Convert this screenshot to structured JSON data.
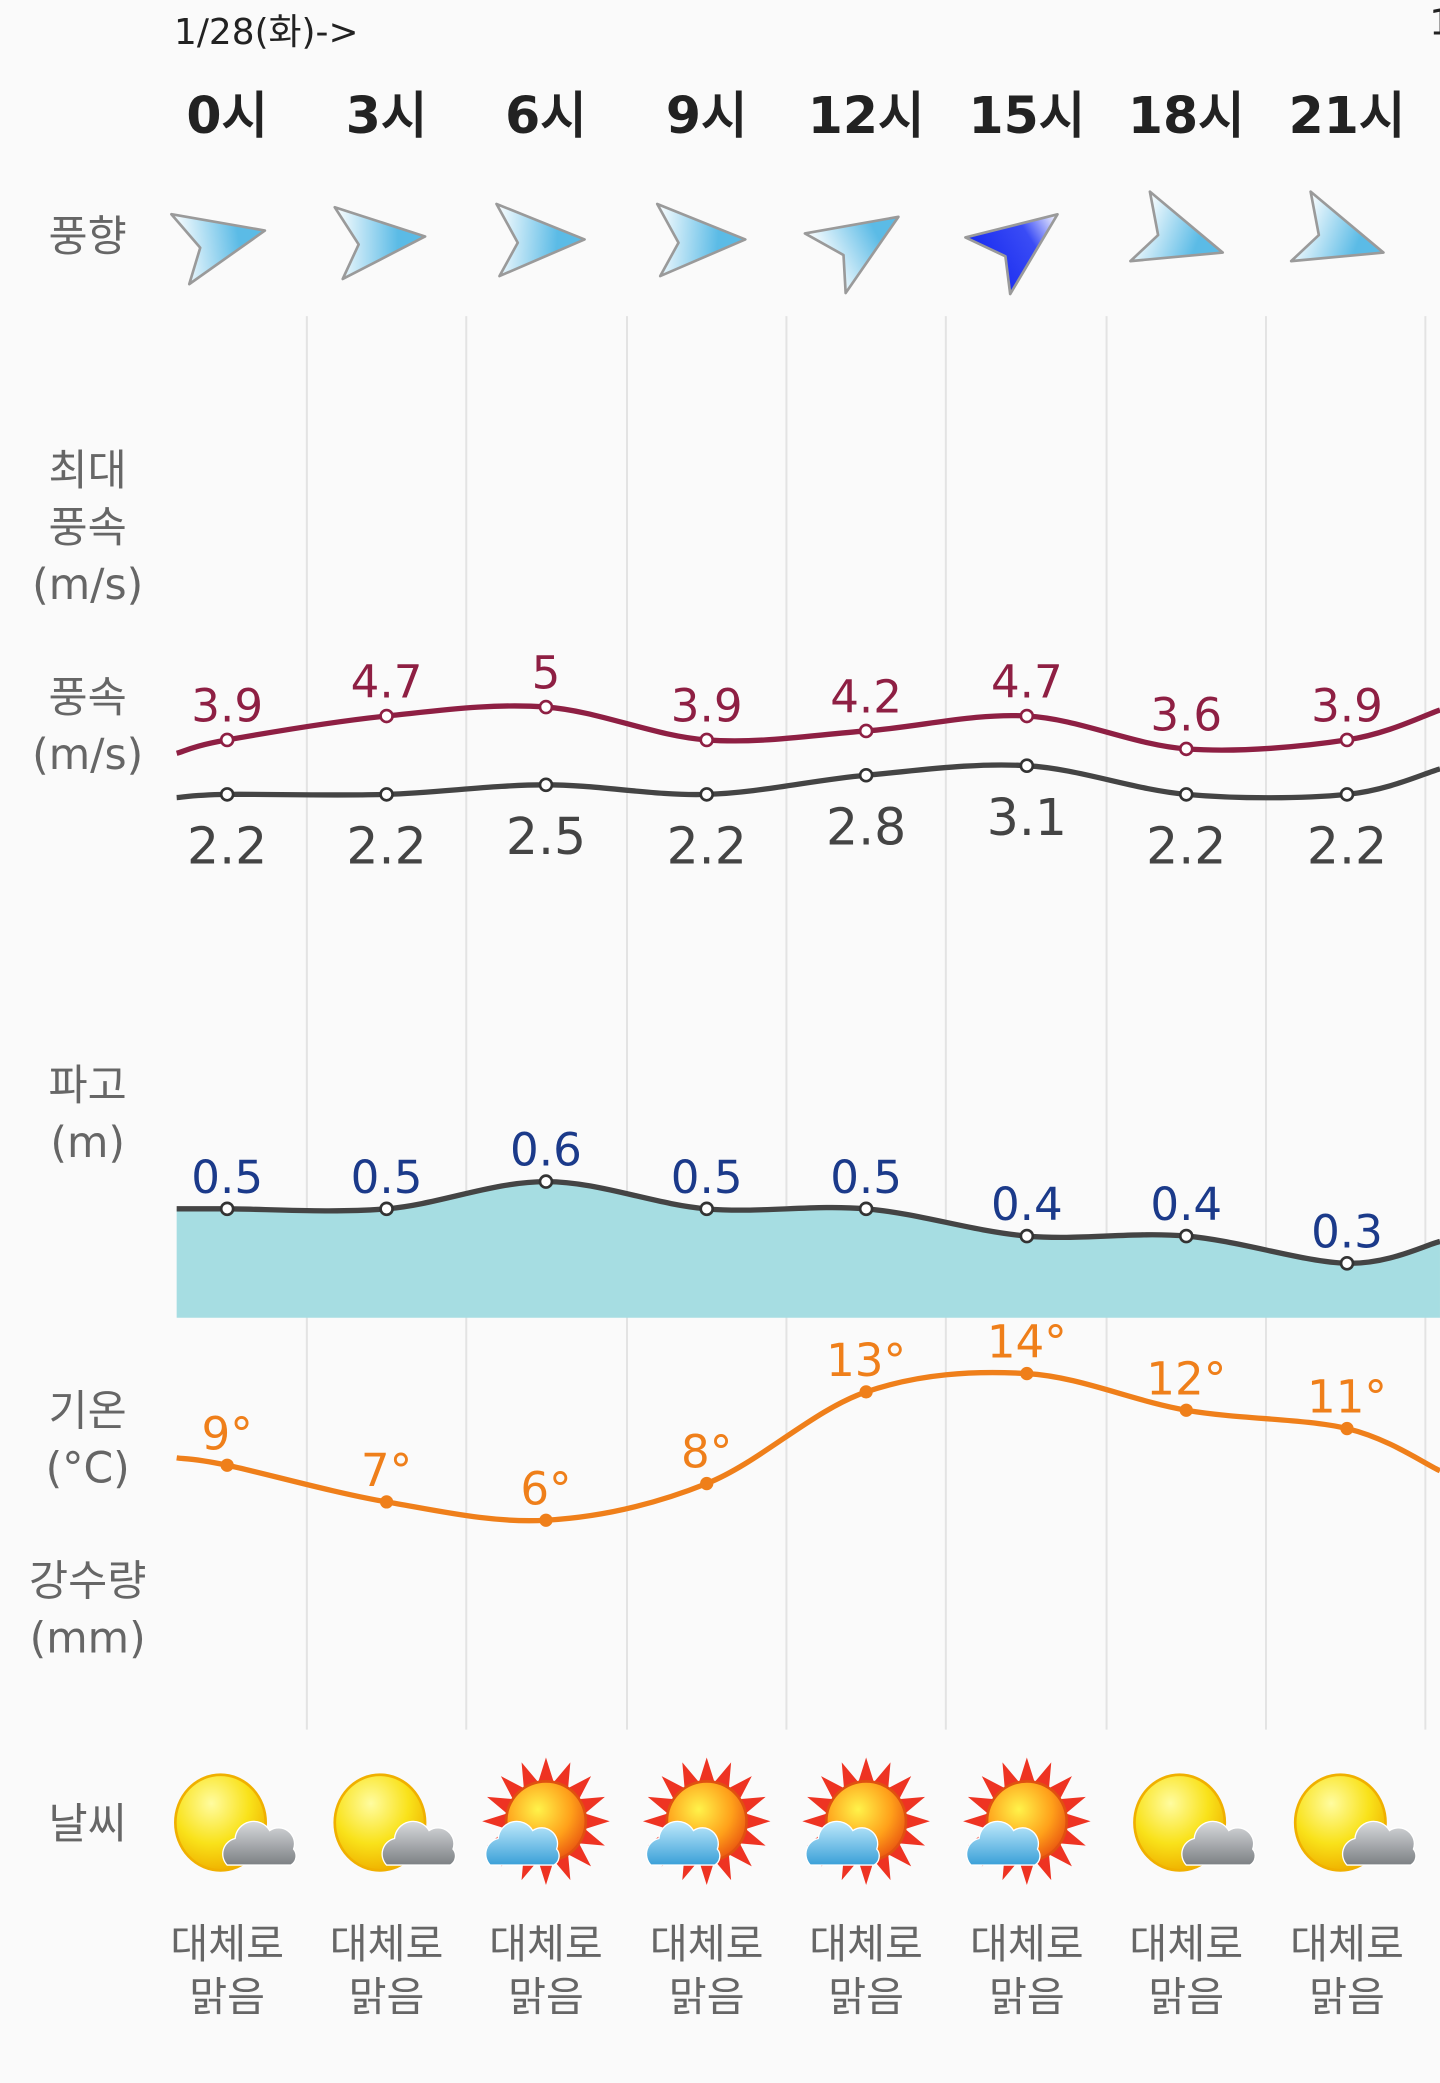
{
  "header": {
    "date_label": "1/28(화)->",
    "next_date_label": "1"
  },
  "hours": [
    "0시",
    "3시",
    "6시",
    "9시",
    "12시",
    "15시",
    "18시",
    "21시"
  ],
  "row_labels": {
    "wind_direction": "풍향",
    "max_wind": [
      "최대",
      "풍속",
      "(m/s)"
    ],
    "wind_speed": [
      "풍속",
      "(m/s)"
    ],
    "wave": [
      "파고",
      "(m)"
    ],
    "temperature": [
      "기온",
      "(°C)"
    ],
    "precipitation": [
      "강수량",
      "(mm)"
    ],
    "weather": "날씨"
  },
  "colors": {
    "max_wind": "#8e1f43",
    "wind_speed": "#444444",
    "wave_line": "#444444",
    "wave_fill": "#a6dde2",
    "wave_label": "#1b3a8a",
    "temperature": "#ef7f1a",
    "wind_arrow": "#5bbbe6",
    "wind_arrow_strong": "#1a2cf0"
  },
  "chart_data": {
    "type": "line",
    "categories": [
      "0시",
      "3시",
      "6시",
      "9시",
      "12시",
      "15시",
      "18시",
      "21시"
    ],
    "series": [
      {
        "key": "max_wind",
        "values": [
          3.9,
          4.7,
          5,
          3.9,
          4.2,
          4.7,
          3.6,
          3.9
        ],
        "labels": [
          "3.9",
          "4.7",
          "5",
          "3.9",
          "4.2",
          "4.7",
          "3.6",
          "3.9"
        ]
      },
      {
        "key": "wind_speed",
        "values": [
          2.2,
          2.2,
          2.5,
          2.2,
          2.8,
          3.1,
          2.2,
          2.2
        ],
        "labels": [
          "2.2",
          "2.2",
          "2.5",
          "2.2",
          "2.8",
          "3.1",
          "2.2",
          "2.2"
        ]
      },
      {
        "key": "wave",
        "type": "area",
        "values": [
          0.5,
          0.5,
          0.6,
          0.5,
          0.5,
          0.4,
          0.4,
          0.3
        ],
        "labels": [
          "0.5",
          "0.5",
          "0.6",
          "0.5",
          "0.5",
          "0.4",
          "0.4",
          "0.3"
        ]
      },
      {
        "key": "temperature",
        "values": [
          9,
          7,
          6,
          8,
          13,
          14,
          12,
          11
        ],
        "labels": [
          "9°",
          "7°",
          "6°",
          "8°",
          "13°",
          "14°",
          "12°",
          "11°"
        ]
      }
    ],
    "wind_direction_icons": [
      {
        "rotation_deg": -8,
        "strong": false
      },
      {
        "rotation_deg": 0,
        "strong": false
      },
      {
        "rotation_deg": 4,
        "strong": false
      },
      {
        "rotation_deg": 4,
        "strong": false
      },
      {
        "rotation_deg": -28,
        "strong": false
      },
      {
        "rotation_deg": -32,
        "strong": true
      },
      {
        "rotation_deg": 22,
        "strong": false
      },
      {
        "rotation_deg": 22,
        "strong": false
      }
    ]
  },
  "weather": [
    {
      "icon": "sun-cloud-icon",
      "text": [
        "대체로",
        "맑음"
      ]
    },
    {
      "icon": "sun-cloud-icon",
      "text": [
        "대체로",
        "맑음"
      ]
    },
    {
      "icon": "bright-sun-cloud-icon",
      "text": [
        "대체로",
        "맑음"
      ]
    },
    {
      "icon": "bright-sun-cloud-icon",
      "text": [
        "대체로",
        "맑음"
      ]
    },
    {
      "icon": "bright-sun-cloud-icon",
      "text": [
        "대체로",
        "맑음"
      ]
    },
    {
      "icon": "bright-sun-cloud-icon",
      "text": [
        "대체로",
        "맑음"
      ]
    },
    {
      "icon": "sun-cloud-icon",
      "text": [
        "대체로",
        "맑음"
      ]
    },
    {
      "icon": "sun-cloud-icon",
      "text": [
        "대체로",
        "맑음"
      ]
    }
  ]
}
